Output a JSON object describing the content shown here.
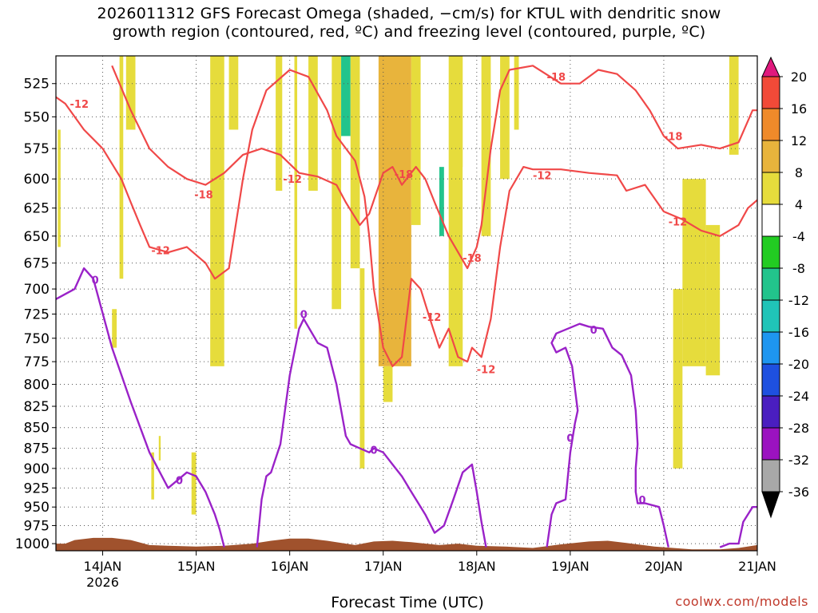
{
  "title": {
    "line1": "2026011312 GFS Forecast Omega (shaded, −cm/s) for KTUL with dendritic snow",
    "line2": "growth region (contoured, red, ºC) and freezing level (contoured, purple, ºC)"
  },
  "credit": "coolwx.com/models",
  "colors": {
    "dendritic_contour": "#f04848",
    "freezing_contour": "#9a22c8",
    "terrain": "#a0522d",
    "omega_up_weak": "#e6dc3c",
    "omega_up_mid": "#e8b43c",
    "omega_down": "#22cc22",
    "omega_down_strong": "#20c4b8"
  },
  "chart_data": {
    "type": "heatmap",
    "xlabel": "Forecast Time (UTC)",
    "ylabel": "",
    "x_ticks": [
      "14JAN",
      "15JAN",
      "16JAN",
      "17JAN",
      "18JAN",
      "19JAN",
      "20JAN",
      "21JAN"
    ],
    "x_year_label": "2026",
    "xlim_days": [
      13.5,
      21.0
    ],
    "y_ticks": [
      525,
      550,
      575,
      600,
      625,
      650,
      675,
      700,
      725,
      750,
      775,
      800,
      825,
      850,
      875,
      900,
      925,
      950,
      975,
      1000
    ],
    "ylim_hpa": [
      1010,
      505
    ],
    "y_scale": "log-pressure",
    "grid": true,
    "colorbar": {
      "labels": [
        "20",
        "16",
        "12",
        "8",
        "4",
        "-4",
        "-8",
        "-12",
        "-16",
        "-20",
        "-24",
        "-28",
        "-32",
        "-36"
      ],
      "bins": [
        {
          "from": 20,
          "to": 24,
          "color": "#e0197d"
        },
        {
          "from": 16,
          "to": 20,
          "color": "#f24a38"
        },
        {
          "from": 12,
          "to": 16,
          "color": "#ef8a2a"
        },
        {
          "from": 8,
          "to": 12,
          "color": "#e8b43c"
        },
        {
          "from": 4,
          "to": 8,
          "color": "#e6dc3c"
        },
        {
          "from": -4,
          "to": 4,
          "color": "#ffffff"
        },
        {
          "from": -8,
          "to": -4,
          "color": "#22cc22"
        },
        {
          "from": -12,
          "to": -8,
          "color": "#22c48c"
        },
        {
          "from": -16,
          "to": -12,
          "color": "#20c4b8"
        },
        {
          "from": -20,
          "to": -16,
          "color": "#1e96f0"
        },
        {
          "from": -24,
          "to": -20,
          "color": "#1e50e0"
        },
        {
          "from": -28,
          "to": -24,
          "color": "#4a1ec0"
        },
        {
          "from": -32,
          "to": -28,
          "color": "#9b12c0"
        },
        {
          "from": -36,
          "to": -32,
          "color": "#a8a8a8"
        }
      ]
    },
    "contour_labels": {
      "dendritic": [
        "-12",
        "-18"
      ],
      "freezing": [
        "0"
      ]
    },
    "dendritic_minus12": [
      [
        13.5,
        535
      ],
      [
        13.6,
        540
      ],
      [
        13.8,
        560
      ],
      [
        14.0,
        575
      ],
      [
        14.2,
        600
      ],
      [
        14.3,
        620
      ],
      [
        14.4,
        640
      ],
      [
        14.5,
        660
      ],
      [
        14.7,
        665
      ],
      [
        14.9,
        660
      ],
      [
        15.1,
        675
      ],
      [
        15.2,
        690
      ],
      [
        15.35,
        680
      ],
      [
        15.5,
        600
      ],
      [
        15.6,
        560
      ],
      [
        15.75,
        530
      ],
      [
        16.0,
        515
      ],
      [
        16.2,
        520
      ],
      [
        16.4,
        545
      ],
      [
        16.5,
        565
      ],
      [
        16.7,
        585
      ],
      [
        16.8,
        615
      ],
      [
        16.85,
        650
      ],
      [
        16.9,
        700
      ],
      [
        17.0,
        760
      ],
      [
        17.1,
        780
      ],
      [
        17.2,
        770
      ],
      [
        17.3,
        690
      ],
      [
        17.4,
        700
      ],
      [
        17.5,
        730
      ],
      [
        17.6,
        760
      ],
      [
        17.7,
        740
      ],
      [
        17.8,
        770
      ],
      [
        17.9,
        775
      ],
      [
        17.95,
        760
      ],
      [
        18.05,
        770
      ],
      [
        18.15,
        730
      ],
      [
        18.25,
        660
      ],
      [
        18.35,
        610
      ],
      [
        18.5,
        590
      ],
      [
        18.6,
        592
      ],
      [
        18.9,
        592
      ],
      [
        19.2,
        595
      ],
      [
        19.5,
        597
      ],
      [
        19.6,
        610
      ],
      [
        19.8,
        605
      ],
      [
        20.0,
        628
      ],
      [
        20.2,
        635
      ],
      [
        20.4,
        645
      ],
      [
        20.6,
        650
      ],
      [
        20.8,
        640
      ],
      [
        20.9,
        625
      ],
      [
        21.0,
        618
      ]
    ],
    "dendritic_minus18": [
      [
        14.1,
        512
      ],
      [
        14.3,
        545
      ],
      [
        14.5,
        575
      ],
      [
        14.7,
        590
      ],
      [
        14.9,
        600
      ],
      [
        15.1,
        605
      ],
      [
        15.3,
        595
      ],
      [
        15.5,
        580
      ],
      [
        15.7,
        575
      ],
      [
        15.9,
        580
      ],
      [
        16.1,
        595
      ],
      [
        16.3,
        598
      ],
      [
        16.5,
        605
      ],
      [
        16.6,
        620
      ],
      [
        16.75,
        640
      ],
      [
        16.85,
        630
      ],
      [
        17.0,
        595
      ],
      [
        17.1,
        590
      ],
      [
        17.2,
        605
      ],
      [
        17.35,
        590
      ],
      [
        17.45,
        600
      ],
      [
        17.55,
        620
      ],
      [
        17.7,
        650
      ],
      [
        17.9,
        680
      ],
      [
        18.0,
        660
      ],
      [
        18.05,
        640
      ],
      [
        18.15,
        575
      ],
      [
        18.25,
        530
      ],
      [
        18.35,
        515
      ],
      [
        18.6,
        512
      ],
      [
        18.9,
        525
      ],
      [
        19.1,
        525
      ],
      [
        19.3,
        515
      ],
      [
        19.5,
        518
      ],
      [
        19.7,
        530
      ],
      [
        19.85,
        545
      ],
      [
        20.0,
        565
      ],
      [
        20.15,
        575
      ],
      [
        20.4,
        572
      ],
      [
        20.6,
        575
      ],
      [
        20.8,
        570
      ],
      [
        20.95,
        545
      ],
      [
        21.0,
        545
      ]
    ],
    "freezing_0_segments": [
      [
        [
          13.5,
          710
        ],
        [
          13.7,
          700
        ],
        [
          13.8,
          680
        ],
        [
          13.9,
          690
        ],
        [
          14.1,
          760
        ],
        [
          14.3,
          820
        ],
        [
          14.5,
          880
        ],
        [
          14.7,
          925
        ],
        [
          14.9,
          905
        ],
        [
          15.0,
          910
        ],
        [
          15.1,
          930
        ],
        [
          15.2,
          960
        ],
        [
          15.25,
          980
        ],
        [
          15.3,
          1005
        ]
      ],
      [
        [
          15.65,
          1005
        ],
        [
          15.7,
          940
        ],
        [
          15.75,
          910
        ],
        [
          15.8,
          905
        ],
        [
          15.9,
          870
        ],
        [
          16.0,
          790
        ],
        [
          16.1,
          740
        ],
        [
          16.15,
          730
        ],
        [
          16.3,
          755
        ],
        [
          16.4,
          760
        ],
        [
          16.5,
          800
        ],
        [
          16.6,
          860
        ],
        [
          16.65,
          870
        ],
        [
          16.75,
          875
        ],
        [
          16.85,
          880
        ],
        [
          16.9,
          875
        ],
        [
          17.0,
          880
        ],
        [
          17.1,
          895
        ],
        [
          17.2,
          910
        ],
        [
          17.3,
          930
        ],
        [
          17.45,
          960
        ],
        [
          17.55,
          985
        ],
        [
          17.65,
          975
        ],
        [
          17.75,
          940
        ],
        [
          17.85,
          905
        ],
        [
          17.95,
          895
        ],
        [
          18.0,
          930
        ],
        [
          18.05,
          970
        ],
        [
          18.1,
          1005
        ]
      ],
      [
        [
          18.75,
          1005
        ],
        [
          18.8,
          960
        ],
        [
          18.85,
          945
        ],
        [
          18.95,
          940
        ],
        [
          19.0,
          880
        ],
        [
          19.05,
          845
        ],
        [
          19.08,
          830
        ],
        [
          19.02,
          780
        ],
        [
          18.95,
          760
        ],
        [
          18.85,
          765
        ],
        [
          18.8,
          755
        ],
        [
          18.85,
          745
        ],
        [
          19.1,
          735
        ],
        [
          19.2,
          738
        ],
        [
          19.35,
          740
        ],
        [
          19.45,
          760
        ],
        [
          19.55,
          768
        ],
        [
          19.65,
          790
        ],
        [
          19.7,
          830
        ],
        [
          19.72,
          870
        ],
        [
          19.7,
          900
        ],
        [
          19.7,
          930
        ],
        [
          19.72,
          945
        ],
        [
          19.8,
          945
        ],
        [
          19.95,
          950
        ],
        [
          20.0,
          975
        ],
        [
          20.05,
          1005
        ]
      ],
      [
        [
          20.6,
          1005
        ],
        [
          20.7,
          1000
        ],
        [
          20.8,
          1000
        ],
        [
          20.85,
          970
        ],
        [
          20.95,
          950
        ],
        [
          21.0,
          950
        ]
      ]
    ],
    "omega_shaded_columns": [
      {
        "x": [
          13.52,
          13.55
        ],
        "p": [
          560,
          660
        ],
        "level": 4
      },
      {
        "x": [
          13.65,
          13.68
        ],
        "p": [
          505,
          570
        ],
        "level": -4
      },
      {
        "x": [
          13.78,
          13.82
        ],
        "p": [
          660,
          930
        ],
        "level": -4
      },
      {
        "x": [
          13.85,
          13.9
        ],
        "p": [
          700,
          940
        ],
        "level": -4
      },
      {
        "x": [
          14.0,
          14.05
        ],
        "p": [
          680,
          960
        ],
        "level": -4
      },
      {
        "x": [
          14.1,
          14.15
        ],
        "p": [
          720,
          760
        ],
        "level": 4
      },
      {
        "x": [
          14.18,
          14.22
        ],
        "p": [
          505,
          690
        ],
        "level": 4
      },
      {
        "x": [
          14.25,
          14.35
        ],
        "p": [
          505,
          560
        ],
        "level": 4
      },
      {
        "x": [
          14.52,
          14.55
        ],
        "p": [
          880,
          940
        ],
        "level": 4
      },
      {
        "x": [
          14.6,
          14.62
        ],
        "p": [
          860,
          890
        ],
        "level": 4
      },
      {
        "x": [
          14.95,
          15.0
        ],
        "p": [
          880,
          960
        ],
        "level": 4
      },
      {
        "x": [
          15.15,
          15.3
        ],
        "p": [
          505,
          780
        ],
        "level": 4
      },
      {
        "x": [
          15.35,
          15.45
        ],
        "p": [
          505,
          560
        ],
        "level": 4
      },
      {
        "x": [
          15.85,
          15.92
        ],
        "p": [
          505,
          610
        ],
        "level": 4
      },
      {
        "x": [
          16.05,
          16.08
        ],
        "p": [
          505,
          740
        ],
        "level": 4
      },
      {
        "x": [
          16.12,
          16.15
        ],
        "p": [
          505,
          760
        ],
        "level": -4
      },
      {
        "x": [
          16.2,
          16.3
        ],
        "p": [
          505,
          610
        ],
        "level": 4
      },
      {
        "x": [
          16.45,
          16.55
        ],
        "p": [
          505,
          720
        ],
        "level": 4
      },
      {
        "x": [
          16.55,
          16.65
        ],
        "p": [
          505,
          565
        ],
        "level": -12
      },
      {
        "x": [
          16.65,
          16.75
        ],
        "p": [
          505,
          680
        ],
        "level": 4
      },
      {
        "x": [
          16.75,
          16.8
        ],
        "p": [
          680,
          900
        ],
        "level": 4
      },
      {
        "x": [
          16.95,
          17.3
        ],
        "p": [
          505,
          780
        ],
        "level": 8
      },
      {
        "x": [
          17.0,
          17.1
        ],
        "p": [
          780,
          820
        ],
        "level": 4
      },
      {
        "x": [
          17.3,
          17.4
        ],
        "p": [
          505,
          640
        ],
        "level": 4
      },
      {
        "x": [
          17.5,
          17.6
        ],
        "p": [
          570,
          660
        ],
        "level": -4
      },
      {
        "x": [
          17.6,
          17.65
        ],
        "p": [
          590,
          650
        ],
        "level": -12
      },
      {
        "x": [
          17.7,
          17.85
        ],
        "p": [
          505,
          780
        ],
        "level": 4
      },
      {
        "x": [
          17.85,
          17.95
        ],
        "p": [
          590,
          680
        ],
        "level": -4
      },
      {
        "x": [
          17.95,
          18.0
        ],
        "p": [
          560,
          660
        ],
        "level": -4
      },
      {
        "x": [
          18.0,
          18.05
        ],
        "p": [
          505,
          760
        ],
        "level": -4
      },
      {
        "x": [
          18.05,
          18.15
        ],
        "p": [
          505,
          650
        ],
        "level": 4
      },
      {
        "x": [
          18.25,
          18.35
        ],
        "p": [
          505,
          600
        ],
        "level": 4
      },
      {
        "x": [
          18.4,
          18.45
        ],
        "p": [
          505,
          560
        ],
        "level": 4
      },
      {
        "x": [
          19.55,
          19.65
        ],
        "p": [
          555,
          640
        ],
        "level": -4
      },
      {
        "x": [
          19.65,
          19.72
        ],
        "p": [
          740,
          880
        ],
        "level": -4
      },
      {
        "x": [
          19.7,
          19.75
        ],
        "p": [
          880,
          950
        ],
        "level": -4
      },
      {
        "x": [
          20.1,
          20.2
        ],
        "p": [
          700,
          900
        ],
        "level": 4
      },
      {
        "x": [
          20.2,
          20.45
        ],
        "p": [
          600,
          780
        ],
        "level": 4
      },
      {
        "x": [
          20.45,
          20.6
        ],
        "p": [
          640,
          790
        ],
        "level": 4
      },
      {
        "x": [
          20.7,
          20.8
        ],
        "p": [
          505,
          580
        ],
        "level": 4
      }
    ],
    "terrain_top_hpa": [
      [
        13.5,
        1000
      ],
      [
        13.6,
        1000
      ],
      [
        13.7,
        995
      ],
      [
        13.9,
        992
      ],
      [
        14.1,
        992
      ],
      [
        14.3,
        995
      ],
      [
        14.5,
        1002
      ],
      [
        14.7,
        1003
      ],
      [
        15.0,
        1004
      ],
      [
        15.3,
        1003
      ],
      [
        15.6,
        1000
      ],
      [
        15.8,
        996
      ],
      [
        16.0,
        993
      ],
      [
        16.2,
        993
      ],
      [
        16.4,
        996
      ],
      [
        16.7,
        1002
      ],
      [
        16.9,
        997
      ],
      [
        17.1,
        996
      ],
      [
        17.3,
        998
      ],
      [
        17.6,
        1002
      ],
      [
        17.8,
        1000
      ],
      [
        18.0,
        1003
      ],
      [
        18.3,
        1004
      ],
      [
        18.6,
        1006
      ],
      [
        18.9,
        1001
      ],
      [
        19.2,
        997
      ],
      [
        19.4,
        996
      ],
      [
        19.6,
        999
      ],
      [
        19.9,
        1004
      ],
      [
        20.1,
        1006
      ],
      [
        20.3,
        1008
      ],
      [
        20.6,
        1008
      ],
      [
        20.8,
        1006
      ],
      [
        21.0,
        1002
      ]
    ]
  }
}
